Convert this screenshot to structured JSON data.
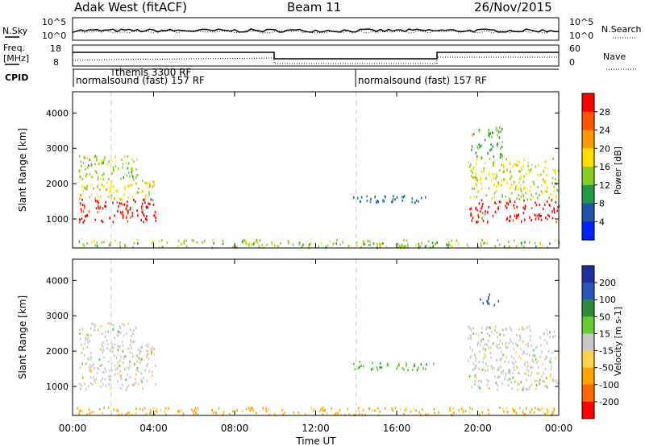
{
  "header": {
    "title": "Adak West (fitACF)",
    "beam": "Beam 11",
    "date": "26/Nov/2015"
  },
  "noise_panel": {
    "left_label": "N.Sky",
    "right_label": "N.Search",
    "tick_top": "10^5",
    "tick_bottom": "10^0",
    "right_tick_top": "10^5",
    "right_tick_bottom": "10^0"
  },
  "freq_panel": {
    "left_label_line1": "Freq.",
    "left_label_line2": "[MHz]",
    "right_label": "Nave",
    "ticks_left": [
      "18",
      "8"
    ],
    "ticks_right": [
      "60",
      "0"
    ]
  },
  "cpid_panel": {
    "label": "CPID",
    "segments": [
      {
        "text": "normalsound (fast) 157 RF"
      },
      {
        "text": "themis 3300 RF"
      },
      {
        "text": "normalsound (fast) 157 RF"
      }
    ]
  },
  "colorbars": {
    "power": {
      "label": "Power [dB]",
      "ticks": [
        "28",
        "24",
        "20",
        "16",
        "12",
        "8",
        "4"
      ],
      "colors": [
        "#ff0000",
        "#ff5500",
        "#ff9900",
        "#ffdd00",
        "#88cc22",
        "#229944",
        "#2255aa",
        "#0022ff"
      ]
    },
    "velocity": {
      "label": "Velocity [m s-1]",
      "ticks": [
        "200",
        "100",
        "50",
        "15",
        "-15",
        "-50",
        "-100",
        "-200"
      ],
      "colors": [
        "#1b2f9a",
        "#2a56b8",
        "#2e8a3c",
        "#66cc33",
        "#c8c8c8",
        "#ffd24d",
        "#ffa500",
        "#ff6600",
        "#ff0000"
      ]
    }
  },
  "chart_data": [
    {
      "type": "heatmap",
      "title": "Power",
      "ylabel": "Slant Range [km]",
      "xlabel": "",
      "ylim": [
        180,
        4600
      ],
      "y_ticks": [
        1000,
        2000,
        3000,
        4000
      ],
      "x_ticks": [
        "00:00",
        "04:00",
        "08:00",
        "12:00",
        "16:00",
        "20:00",
        "00:00"
      ],
      "x_range_hours": [
        0,
        24
      ],
      "patches": [
        {
          "x0": 0.3,
          "x1": 4.1,
          "y0": 900,
          "y1": 1550,
          "value": 28
        },
        {
          "x0": 0.3,
          "x1": 4.1,
          "y0": 1550,
          "y1": 2100,
          "value": 16
        },
        {
          "x0": 0.3,
          "x1": 3.2,
          "y0": 2100,
          "y1": 2800,
          "value": 12
        },
        {
          "x0": 13.8,
          "x1": 17.8,
          "y0": 1450,
          "y1": 1650,
          "value": 6
        },
        {
          "x0": 19.5,
          "x1": 24,
          "y0": 900,
          "y1": 1550,
          "value": 28
        },
        {
          "x0": 19.5,
          "x1": 24,
          "y0": 1550,
          "y1": 2700,
          "value": 14
        },
        {
          "x0": 19.6,
          "x1": 21.2,
          "y0": 2700,
          "y1": 3600,
          "value": 10
        },
        {
          "x0": 0,
          "x1": 24,
          "y0": 180,
          "y1": 400,
          "value": 12
        }
      ]
    },
    {
      "type": "heatmap",
      "title": "Velocity",
      "ylabel": "Slant Range [km]",
      "xlabel": "Time UT",
      "ylim": [
        180,
        4600
      ],
      "y_ticks": [
        1000,
        2000,
        3000,
        4000
      ],
      "x_ticks": [
        "00:00",
        "04:00",
        "08:00",
        "12:00",
        "16:00",
        "20:00",
        "00:00"
      ],
      "x_range_hours": [
        0,
        24
      ],
      "patches": [
        {
          "x0": 0.3,
          "x1": 4.1,
          "y0": 900,
          "y1": 2200,
          "value": 0
        },
        {
          "x0": 0.3,
          "x1": 3.2,
          "y0": 2200,
          "y1": 2800,
          "value": 0
        },
        {
          "x0": 13.8,
          "x1": 17.8,
          "y0": 1450,
          "y1": 1700,
          "value": 40
        },
        {
          "x0": 19.5,
          "x1": 24,
          "y0": 900,
          "y1": 2700,
          "value": 0
        },
        {
          "x0": 20.0,
          "x1": 21.0,
          "y0": 3300,
          "y1": 3600,
          "value": 180
        },
        {
          "x0": 0,
          "x1": 24,
          "y0": 180,
          "y1": 400,
          "value": -60
        }
      ]
    }
  ]
}
